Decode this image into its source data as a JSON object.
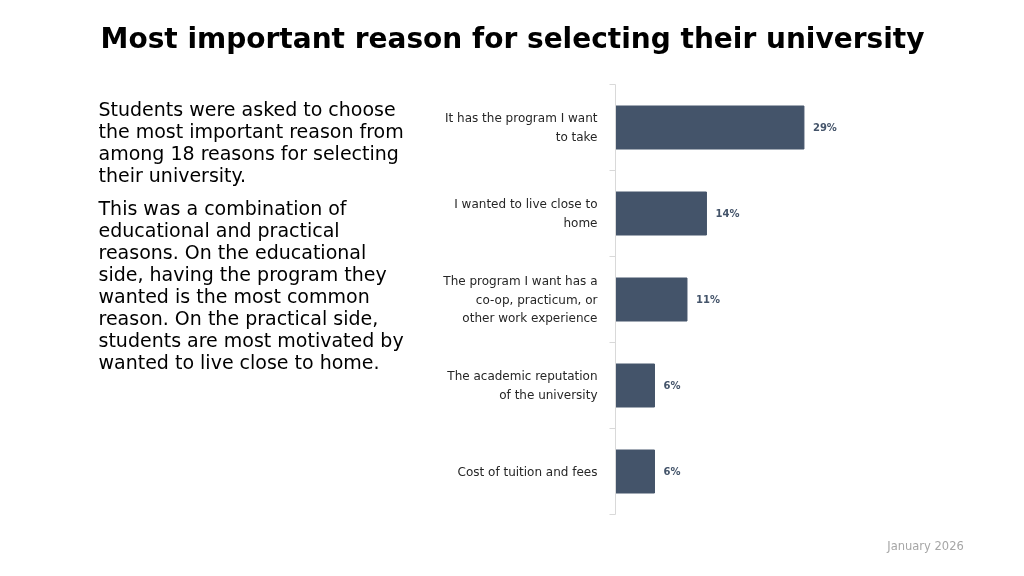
{
  "chart_data": {
    "type": "bar",
    "orientation": "horizontal",
    "title": "Most important reason for selecting their university",
    "categories": [
      "It has the program I want to take",
      "I wanted to live close to home",
      "The program I want has a co-op, practicum, or other work experience",
      "The academic reputation of the university",
      "Cost of tuition and fees"
    ],
    "values": [
      29,
      14,
      11,
      6,
      6
    ],
    "color": "#44546a",
    "value_labels": [
      "29%",
      "14%",
      "11%",
      "6%",
      "6%"
    ],
    "tick_labels": "y",
    "grid": false,
    "annotations": [
      "Students were asked to choose the most important reason from among 18 reasons for selecting their university.",
      "This was a combination of educational and practical reasons.  On the educational side, having the program they wanted is the most common reason. On the practical side, students are most motivated by wanted to live close to home.",
      "January 2026"
    ]
  }
}
